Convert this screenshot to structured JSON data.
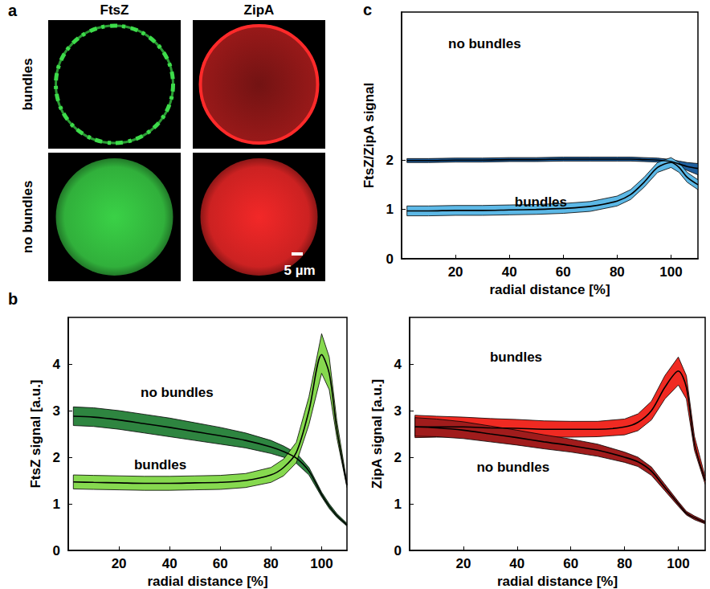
{
  "images": {
    "panel": "a",
    "columns": [
      "FtsZ",
      "ZipA"
    ],
    "rows": [
      "bundles",
      "no bundles"
    ],
    "scale_bar": "5 µm",
    "colors": [
      "#3ddc4a",
      "#ff2a2a"
    ]
  },
  "chart_data": [
    {
      "type": "line",
      "panel": "b",
      "xlabel": "radial distance [%]",
      "ylabel": "FtsZ signal [a.u.]",
      "xlim": [
        0,
        110
      ],
      "xticks": [
        20,
        40,
        60,
        80,
        100
      ],
      "ylim": [
        0,
        5
      ],
      "yticks": [
        0,
        1,
        2,
        3,
        4
      ],
      "x": [
        2,
        10,
        20,
        30,
        40,
        50,
        60,
        70,
        80,
        85,
        90,
        95,
        100,
        103,
        106,
        110
      ],
      "series": [
        {
          "name": "no bundles",
          "color": "#2e8540",
          "values": [
            2.88,
            2.86,
            2.8,
            2.72,
            2.64,
            2.55,
            2.46,
            2.36,
            2.22,
            2.12,
            1.98,
            1.7,
            1.2,
            0.95,
            0.75,
            0.55
          ],
          "lower": [
            2.68,
            2.66,
            2.6,
            2.52,
            2.44,
            2.36,
            2.28,
            2.2,
            2.08,
            2.0,
            1.87,
            1.62,
            1.15,
            0.9,
            0.71,
            0.52
          ],
          "upper": [
            3.08,
            3.06,
            3.0,
            2.92,
            2.84,
            2.74,
            2.64,
            2.52,
            2.36,
            2.24,
            2.09,
            1.78,
            1.25,
            1.0,
            0.79,
            0.58
          ]
        },
        {
          "name": "bundles",
          "color": "#86d94f",
          "values": [
            1.47,
            1.46,
            1.45,
            1.44,
            1.44,
            1.45,
            1.46,
            1.5,
            1.62,
            1.78,
            2.1,
            3.0,
            4.2,
            3.8,
            2.6,
            1.4
          ],
          "lower": [
            1.32,
            1.31,
            1.3,
            1.29,
            1.29,
            1.3,
            1.31,
            1.35,
            1.46,
            1.6,
            1.88,
            2.7,
            3.8,
            3.45,
            2.42,
            1.35
          ],
          "upper": [
            1.62,
            1.61,
            1.6,
            1.59,
            1.59,
            1.6,
            1.61,
            1.65,
            1.78,
            1.96,
            2.32,
            3.3,
            4.65,
            4.15,
            2.78,
            1.45
          ]
        }
      ]
    },
    {
      "type": "line",
      "xlabel": "radial distance [%]",
      "ylabel": "ZipA signal [a.u.]",
      "xlim": [
        0,
        110
      ],
      "xticks": [
        20,
        40,
        60,
        80,
        100
      ],
      "ylim": [
        0,
        5
      ],
      "yticks": [
        0,
        1,
        2,
        3,
        4
      ],
      "x": [
        2,
        10,
        20,
        30,
        40,
        50,
        60,
        70,
        80,
        85,
        90,
        95,
        100,
        103,
        106,
        110
      ],
      "series": [
        {
          "name": "bundles",
          "color": "#f02a22",
          "values": [
            2.65,
            2.65,
            2.65,
            2.63,
            2.62,
            2.6,
            2.6,
            2.6,
            2.65,
            2.75,
            3.0,
            3.5,
            3.85,
            3.5,
            2.3,
            1.5
          ],
          "lower": [
            2.42,
            2.43,
            2.44,
            2.44,
            2.44,
            2.43,
            2.43,
            2.44,
            2.48,
            2.57,
            2.8,
            3.25,
            3.55,
            3.25,
            2.15,
            1.42
          ],
          "upper": [
            2.9,
            2.88,
            2.86,
            2.83,
            2.81,
            2.78,
            2.77,
            2.77,
            2.82,
            2.93,
            3.2,
            3.75,
            4.15,
            3.75,
            2.45,
            1.58
          ]
        },
        {
          "name": "no bundles",
          "color": "#a01c1c",
          "values": [
            2.65,
            2.63,
            2.58,
            2.5,
            2.42,
            2.33,
            2.25,
            2.15,
            2.0,
            1.9,
            1.7,
            1.35,
            1.0,
            0.8,
            0.7,
            0.6
          ],
          "lower": [
            2.45,
            2.44,
            2.4,
            2.33,
            2.26,
            2.18,
            2.11,
            2.02,
            1.89,
            1.8,
            1.61,
            1.28,
            0.95,
            0.76,
            0.66,
            0.57
          ],
          "upper": [
            2.85,
            2.82,
            2.76,
            2.67,
            2.58,
            2.48,
            2.39,
            2.28,
            2.11,
            2.0,
            1.79,
            1.42,
            1.05,
            0.84,
            0.74,
            0.63
          ]
        }
      ]
    },
    {
      "type": "line",
      "panel": "c",
      "xlabel": "radial distance [%]",
      "ylabel": "FtsZ/ZipA signal",
      "xlim": [
        0,
        110
      ],
      "xticks": [
        20,
        40,
        60,
        80,
        100
      ],
      "ylim": [
        0,
        5
      ],
      "yticks": [
        0,
        1,
        2
      ],
      "x": [
        2,
        10,
        20,
        30,
        40,
        50,
        60,
        70,
        80,
        85,
        90,
        95,
        100,
        103,
        106,
        110
      ],
      "series": [
        {
          "name": "no bundles",
          "color": "#1f5f9e",
          "values": [
            1.99,
            1.99,
            2.0,
            2.0,
            2.01,
            2.01,
            2.02,
            2.02,
            2.02,
            2.02,
            2.01,
            2.0,
            1.97,
            1.92,
            1.87,
            1.83
          ],
          "lower": [
            1.95,
            1.95,
            1.96,
            1.96,
            1.97,
            1.97,
            1.98,
            1.98,
            1.98,
            1.98,
            1.97,
            1.96,
            1.93,
            1.86,
            1.79,
            1.7
          ],
          "upper": [
            2.03,
            2.03,
            2.04,
            2.04,
            2.05,
            2.05,
            2.06,
            2.06,
            2.06,
            2.06,
            2.05,
            2.04,
            2.01,
            1.98,
            1.95,
            1.93
          ]
        },
        {
          "name": "bundles",
          "color": "#5cb8e6",
          "values": [
            0.97,
            0.97,
            0.98,
            0.98,
            0.99,
            1.0,
            1.02,
            1.06,
            1.17,
            1.3,
            1.55,
            1.85,
            1.95,
            1.85,
            1.65,
            1.5
          ],
          "lower": [
            0.87,
            0.87,
            0.88,
            0.88,
            0.89,
            0.9,
            0.92,
            0.96,
            1.07,
            1.2,
            1.45,
            1.75,
            1.85,
            1.75,
            1.55,
            1.4
          ],
          "upper": [
            1.07,
            1.07,
            1.08,
            1.08,
            1.09,
            1.1,
            1.12,
            1.16,
            1.27,
            1.4,
            1.65,
            1.95,
            2.05,
            1.95,
            1.75,
            1.6
          ]
        }
      ]
    }
  ]
}
